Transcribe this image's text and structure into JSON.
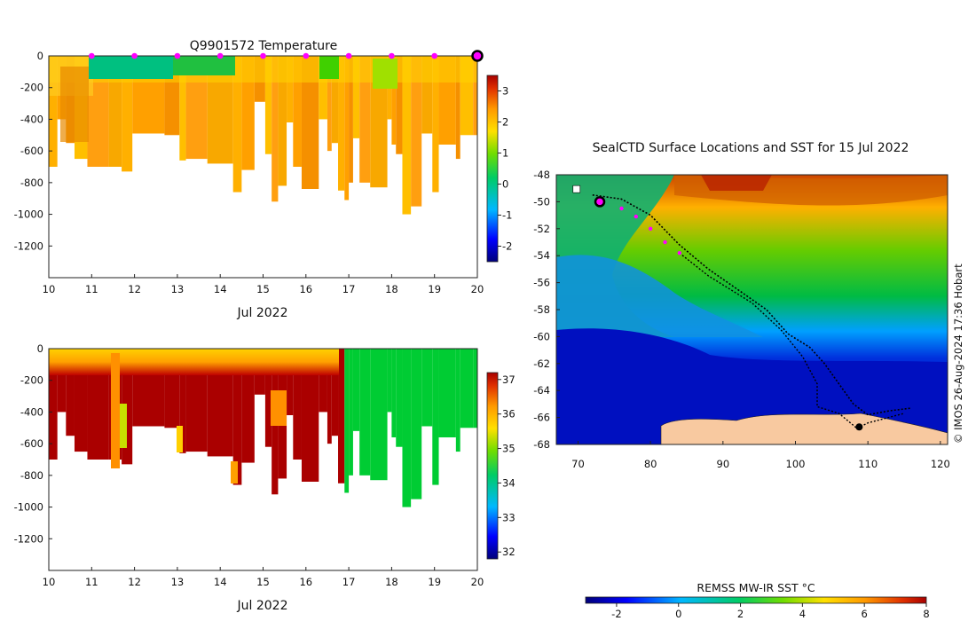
{
  "chart_data": [
    {
      "type": "heatmap",
      "title": "Q9901572  Temperature",
      "xlabel": "Jul 2022",
      "ylabel": "",
      "xlim": [
        10,
        20
      ],
      "ylim": [
        -1400,
        0
      ],
      "xticks": [
        "10",
        "11",
        "12",
        "13",
        "14",
        "15",
        "16",
        "17",
        "18",
        "19",
        "20"
      ],
      "yticks": [
        "0",
        "-200",
        "-400",
        "-600",
        "-800",
        "-1000",
        "-1200"
      ],
      "colorbar": {
        "ticks": [
          "3",
          "2",
          "1",
          "0",
          "-1",
          "-2"
        ],
        "range": [
          -2.5,
          3.5
        ]
      },
      "profile_max_depth": [
        [
          10.0,
          -700
        ],
        [
          10.2,
          -400
        ],
        [
          10.4,
          -550
        ],
        [
          10.6,
          -650
        ],
        [
          10.9,
          -700
        ],
        [
          11.4,
          -700
        ],
        [
          11.7,
          -730
        ],
        [
          11.95,
          -490
        ],
        [
          12.7,
          -500
        ],
        [
          13.05,
          -660
        ],
        [
          13.2,
          -650
        ],
        [
          13.7,
          -680
        ],
        [
          14.3,
          -860
        ],
        [
          14.5,
          -720
        ],
        [
          14.8,
          -290
        ],
        [
          15.05,
          -620
        ],
        [
          15.2,
          -920
        ],
        [
          15.35,
          -820
        ],
        [
          15.55,
          -420
        ],
        [
          15.7,
          -700
        ],
        [
          15.9,
          -840
        ],
        [
          16.3,
          -400
        ],
        [
          16.5,
          -600
        ],
        [
          16.6,
          -550
        ],
        [
          16.75,
          -850
        ],
        [
          16.9,
          -910
        ],
        [
          17.0,
          -800
        ],
        [
          17.1,
          -520
        ],
        [
          17.25,
          -800
        ],
        [
          17.5,
          -830
        ],
        [
          17.9,
          -400
        ],
        [
          18.0,
          -560
        ],
        [
          18.1,
          -620
        ],
        [
          18.25,
          -1000
        ],
        [
          18.45,
          -950
        ],
        [
          18.7,
          -490
        ],
        [
          18.95,
          -860
        ],
        [
          19.1,
          -560
        ],
        [
          19.5,
          -650
        ],
        [
          19.6,
          -500
        ],
        [
          19.9,
          -500
        ]
      ],
      "profile_markers_x": [
        11,
        12,
        13,
        14,
        15,
        16,
        17,
        18,
        19
      ],
      "current_position_x": 20
    },
    {
      "type": "heatmap",
      "title": "",
      "xlabel": "Jul 2022",
      "ylabel": "",
      "xlim": [
        10,
        20
      ],
      "ylim": [
        -1400,
        0
      ],
      "xticks": [
        "10",
        "11",
        "12",
        "13",
        "14",
        "15",
        "16",
        "17",
        "18",
        "19",
        "20"
      ],
      "yticks": [
        "0",
        "-200",
        "-400",
        "-600",
        "-800",
        "-1000",
        "-1200"
      ],
      "colorbar": {
        "ticks": [
          "37",
          "36",
          "35",
          "34",
          "33",
          "32"
        ],
        "range": [
          31.8,
          37.2
        ]
      },
      "fresh_boundary_x": 16.85
    },
    {
      "type": "heatmap",
      "title": "SealCTD Surface Locations and SST for 15 Jul 2022",
      "xlabel": "",
      "ylabel": "",
      "xlim": [
        67,
        121
      ],
      "ylim": [
        -68,
        -48
      ],
      "xticks": [
        "70",
        "80",
        "90",
        "100",
        "110",
        "120"
      ],
      "yticks": [
        "-48",
        "-50",
        "-52",
        "-54",
        "-56",
        "-58",
        "-60",
        "-62",
        "-64",
        "-66",
        "-68"
      ],
      "colorbar": {
        "label": "REMSS MW-IR SST °C",
        "ticks": [
          "-2",
          "0",
          "2",
          "4",
          "6",
          "8"
        ],
        "range": [
          -3,
          8
        ]
      },
      "track_recent": [
        [
          73,
          -50
        ],
        [
          76,
          -50.5
        ],
        [
          78,
          -51.1
        ],
        [
          80,
          -52
        ],
        [
          82,
          -53
        ],
        [
          84,
          -53.8
        ]
      ],
      "current_position": [
        73,
        -50
      ]
    }
  ],
  "credit": "© IMOS 26-Aug-2024 17:36 Hobart",
  "colors": {
    "marker": "#ff00ff",
    "land": "#f8c9a0",
    "track": "#000000"
  }
}
